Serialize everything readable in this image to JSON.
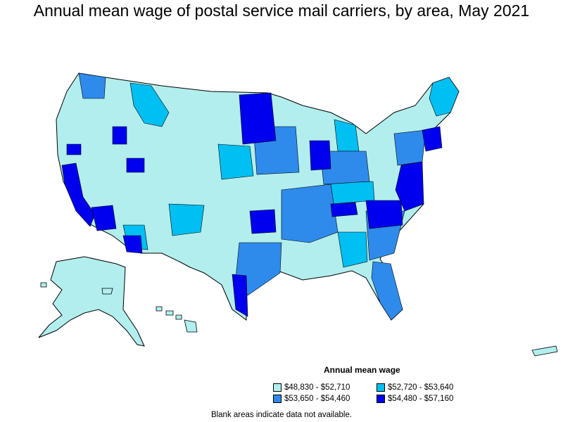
{
  "title": "Annual mean wage of postal service mail carriers, by area, May 2021",
  "legend": {
    "title": "Annual mean wage",
    "items": [
      {
        "label": "$48,830 - $52,710",
        "color": "#b2eeee"
      },
      {
        "label": "$53,650 - $54,460",
        "color": "#2e8bec"
      },
      {
        "label": "$52,720 - $53,640",
        "color": "#00bff2"
      },
      {
        "label": "$54,480 - $57,160",
        "color": "#0000ee"
      }
    ]
  },
  "footnote": "Blank areas indicate data not available.",
  "colors": {
    "tier1": "#b2eeee",
    "tier2": "#00bff2",
    "tier3": "#2e8bec",
    "tier4": "#0000ee",
    "border": "#000000"
  }
}
